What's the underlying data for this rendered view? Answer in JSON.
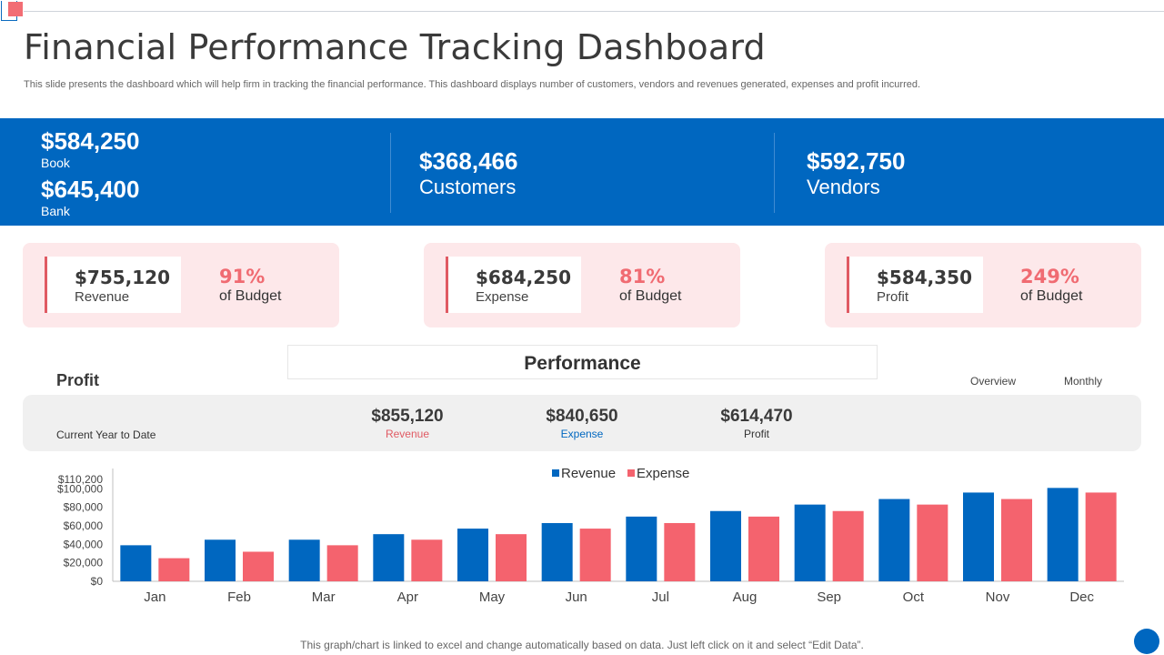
{
  "header": {
    "title": "Financial Performance Tracking Dashboard",
    "subtitle": "This slide presents the dashboard which will help firm in tracking the financial performance. This dashboard displays number of customers, vendors and revenues generated, expenses and profit incurred."
  },
  "banner": {
    "book_value": "$584,250",
    "book_label": "Book",
    "bank_value": "$645,400",
    "bank_label": "Bank",
    "customers_value": "$368,466",
    "customers_label": "Customers",
    "vendors_value": "$592,750",
    "vendors_label": "Vendors"
  },
  "cards": {
    "revenue": {
      "amount": "$755,120",
      "label": "Revenue",
      "pct": "91%",
      "of_budget": "of Budget"
    },
    "expense": {
      "amount": "$684,250",
      "label": "Expense",
      "pct": "81%",
      "of_budget": "of Budget"
    },
    "profit": {
      "amount": "$584,350",
      "label": "Profit",
      "pct": "249%",
      "of_budget": "of Budget"
    }
  },
  "performance": {
    "title": "Performance",
    "profit_heading": "Profit",
    "tab_overview": "Overview",
    "tab_monthly": "Monthly",
    "ytd_label": "Current Year to Date",
    "revenue_value": "$855,120",
    "revenue_label": "Revenue",
    "expense_value": "$840,650",
    "expense_label": "Expense",
    "profit_value": "$614,470",
    "profit_label": "Profit"
  },
  "colors": {
    "revenue": "#0067c0",
    "expense": "#f4636e",
    "axis": "#bfbfbf"
  },
  "chart_data": {
    "type": "bar",
    "categories": [
      "Jan",
      "Feb",
      "Mar",
      "Apr",
      "May",
      "Jun",
      "Jul",
      "Aug",
      "Sep",
      "Oct",
      "Nov",
      "Dec"
    ],
    "series": [
      {
        "name": "Revenue",
        "values": [
          39000,
          45000,
          45000,
          51000,
          57000,
          63000,
          70000,
          76000,
          83000,
          89000,
          96000,
          101000
        ]
      },
      {
        "name": "Expense",
        "values": [
          25000,
          32000,
          39000,
          45000,
          51000,
          57000,
          63000,
          70000,
          76000,
          83000,
          89000,
          96000
        ]
      }
    ],
    "yticks": [
      "$0",
      "$20,000",
      "$40,000",
      "$60,000",
      "$80,000",
      "$100,000",
      "$110,200"
    ],
    "ytick_values": [
      0,
      20000,
      40000,
      60000,
      80000,
      100000,
      110200
    ],
    "ylim": [
      0,
      110200
    ],
    "legend": "top-center",
    "title": "",
    "xlabel": "",
    "ylabel": ""
  },
  "footer": {
    "note": "This graph/chart is linked to excel and change automatically based on data. Just left click on it and select “Edit Data”."
  }
}
